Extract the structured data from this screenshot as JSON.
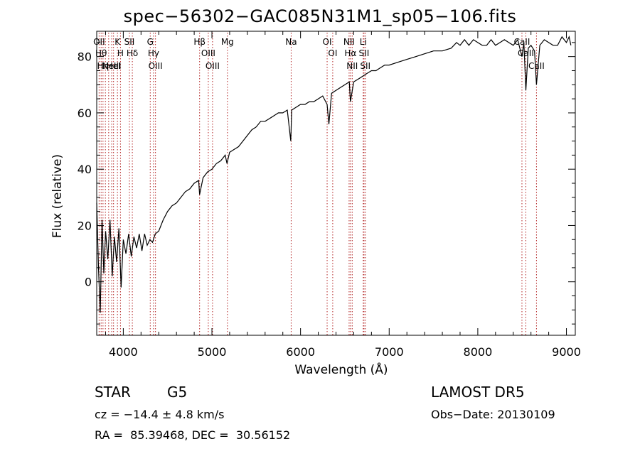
{
  "chart_data": {
    "type": "line",
    "title": "spec−56302−GAC085N31M1_sp05−106.fits",
    "xlabel": "Wavelength (Å)",
    "ylabel": "Flux (relative)",
    "xlim": [
      3700,
      9100
    ],
    "ylim": [
      -19,
      89
    ],
    "grid": false,
    "xticks": [
      4000,
      5000,
      6000,
      7000,
      8000,
      9000
    ],
    "yticks": [
      0,
      20,
      40,
      60,
      80
    ],
    "series": [
      {
        "line_color": "#000000",
        "x": [
          3700,
          3720,
          3740,
          3760,
          3780,
          3800,
          3825,
          3850,
          3875,
          3900,
          3925,
          3950,
          3975,
          4000,
          4030,
          4060,
          4090,
          4120,
          4150,
          4180,
          4210,
          4240,
          4270,
          4300,
          4330,
          4360,
          4400,
          4450,
          4500,
          4550,
          4600,
          4650,
          4700,
          4750,
          4800,
          4850,
          4861,
          4900,
          4950,
          5000,
          5050,
          5100,
          5150,
          5170,
          5200,
          5250,
          5300,
          5350,
          5400,
          5450,
          5500,
          5550,
          5600,
          5650,
          5700,
          5750,
          5800,
          5850,
          5890,
          5900,
          5950,
          6000,
          6050,
          6100,
          6150,
          6200,
          6250,
          6300,
          6320,
          6350,
          6400,
          6450,
          6500,
          6550,
          6563,
          6600,
          6650,
          6700,
          6750,
          6800,
          6850,
          6900,
          6950,
          7000,
          7100,
          7200,
          7300,
          7400,
          7500,
          7600,
          7700,
          7760,
          7800,
          7850,
          7900,
          7950,
          8000,
          8050,
          8100,
          8150,
          8200,
          8250,
          8300,
          8350,
          8400,
          8450,
          8498,
          8520,
          8542,
          8570,
          8600,
          8640,
          8662,
          8700,
          8750,
          8800,
          8850,
          8900,
          8950,
          9000,
          9030,
          9050
        ],
        "y": [
          28,
          5,
          -11,
          22,
          3,
          18,
          8,
          22,
          2,
          16,
          7,
          19,
          -2,
          15,
          10,
          17,
          9,
          16,
          12,
          17,
          11,
          17,
          13,
          15,
          14,
          17,
          18,
          22,
          25,
          27,
          28,
          30,
          32,
          33,
          35,
          36,
          31,
          37,
          39,
          40,
          42,
          43,
          45,
          42,
          46,
          47,
          48,
          50,
          52,
          54,
          55,
          57,
          57,
          58,
          59,
          60,
          60,
          61,
          50,
          61,
          62,
          63,
          63,
          64,
          64,
          65,
          66,
          63,
          56,
          67,
          68,
          69,
          70,
          71,
          64,
          71,
          72,
          73,
          74,
          75,
          75,
          76,
          77,
          77,
          78,
          79,
          80,
          81,
          82,
          82,
          83,
          85,
          84,
          86,
          84,
          86,
          85,
          84,
          84,
          86,
          84,
          85,
          86,
          85,
          84,
          86,
          80,
          85,
          68,
          83,
          84,
          82,
          70,
          84,
          86,
          85,
          84,
          84,
          87,
          85,
          87,
          84
        ]
      }
    ],
    "lines": [
      {
        "wavelength": 3727,
        "labels": [
          "OII"
        ]
      },
      {
        "wavelength": 3750,
        "labels": [
          "Hθ"
        ]
      },
      {
        "wavelength": 3771,
        "labels": [
          "Hη"
        ]
      },
      {
        "wavelength": 3798,
        "labels": []
      },
      {
        "wavelength": 3835,
        "labels": []
      },
      {
        "wavelength": 3869,
        "labels": [
          "NeIII"
        ]
      },
      {
        "wavelength": 3890,
        "labels": [
          "HeI"
        ]
      },
      {
        "wavelength": 3934,
        "labels": [
          "K"
        ]
      },
      {
        "wavelength": 3968,
        "labels": [
          "H"
        ]
      },
      {
        "wavelength": 4069,
        "labels": [
          "SII"
        ]
      },
      {
        "wavelength": 4102,
        "labels": [
          "Hδ"
        ]
      },
      {
        "wavelength": 4304,
        "labels": [
          "G"
        ]
      },
      {
        "wavelength": 4341,
        "labels": [
          "Hγ"
        ]
      },
      {
        "wavelength": 4363,
        "labels": [
          "OIII"
        ]
      },
      {
        "wavelength": 4861,
        "labels": [
          "Hβ"
        ]
      },
      {
        "wavelength": 4959,
        "labels": [
          "OIII"
        ]
      },
      {
        "wavelength": 5007,
        "labels": [
          "OIII"
        ]
      },
      {
        "wavelength": 5175,
        "labels": [
          "Mg"
        ]
      },
      {
        "wavelength": 5894,
        "labels": [
          "Na"
        ]
      },
      {
        "wavelength": 6300,
        "labels": [
          "OI"
        ]
      },
      {
        "wavelength": 6363,
        "labels": [
          "OI"
        ]
      },
      {
        "wavelength": 6548,
        "labels": [
          "NII"
        ]
      },
      {
        "wavelength": 6563,
        "labels": [
          "Hα"
        ]
      },
      {
        "wavelength": 6583,
        "labels": [
          "NII"
        ]
      },
      {
        "wavelength": 6707,
        "labels": [
          "Li"
        ]
      },
      {
        "wavelength": 6716,
        "labels": [
          "SII"
        ]
      },
      {
        "wavelength": 6731,
        "labels": [
          "SII"
        ]
      },
      {
        "wavelength": 8498,
        "labels": [
          "CaII"
        ]
      },
      {
        "wavelength": 8542,
        "labels": [
          "CaII"
        ]
      },
      {
        "wavelength": 8662,
        "labels": [
          "CaII"
        ]
      }
    ],
    "colors": {
      "spectrum": "#000000",
      "line_markers": "#b22222",
      "axes": "#000000"
    }
  },
  "info": {
    "object_type": "STAR",
    "subclass": "G5",
    "survey": "LAMOST DR5",
    "cz_text": "cz = −14.4 ± 4.8 km/s",
    "obs_date": "Obs−Date: 20130109",
    "coords": "RA =  85.39468, DEC =  30.56152"
  }
}
